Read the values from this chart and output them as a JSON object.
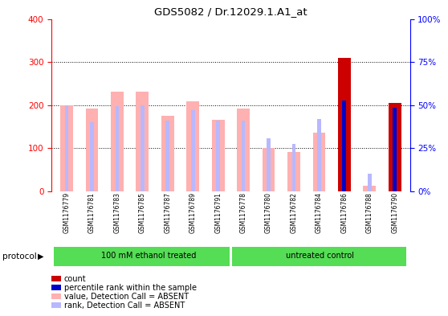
{
  "title": "GDS5082 / Dr.12029.1.A1_at",
  "samples": [
    "GSM1176779",
    "GSM1176781",
    "GSM1176783",
    "GSM1176785",
    "GSM1176787",
    "GSM1176789",
    "GSM1176791",
    "GSM1176778",
    "GSM1176780",
    "GSM1176782",
    "GSM1176784",
    "GSM1176786",
    "GSM1176788",
    "GSM1176790"
  ],
  "value_absent": [
    200,
    192,
    232,
    232,
    175,
    208,
    165,
    192,
    100,
    92,
    135,
    0,
    12,
    0
  ],
  "rank_absent_pct": [
    50,
    40,
    49.5,
    50,
    40.8,
    47,
    40.8,
    40.8,
    30.5,
    27.5,
    42,
    0,
    10,
    0
  ],
  "count": [
    0,
    0,
    0,
    0,
    0,
    0,
    0,
    0,
    0,
    0,
    0,
    310,
    0,
    205
  ],
  "percentile_pct": [
    0,
    0,
    0,
    0,
    0,
    0,
    0,
    0,
    0,
    0,
    0,
    52.5,
    0,
    48.3
  ],
  "group1_label": "100 mM ethanol treated",
  "group2_label": "untreated control",
  "group1_count": 7,
  "group2_count": 7,
  "ylim_left": [
    0,
    400
  ],
  "ylim_right": [
    0,
    100
  ],
  "yticks_left": [
    0,
    100,
    200,
    300,
    400
  ],
  "yticklabels_left": [
    "0",
    "100",
    "200",
    "300",
    "400"
  ],
  "yticks_right_pct": [
    0,
    25,
    50,
    75,
    100
  ],
  "yticklabels_right": [
    "0%",
    "25%",
    "50%",
    "75%",
    "100%"
  ],
  "color_value_absent": "#ffb0b0",
  "color_rank_absent": "#b8b8ff",
  "color_count": "#cc0000",
  "color_percentile": "#0000cc",
  "color_group": "#55dd55",
  "bar_width": 0.5,
  "rank_bar_width": 0.15,
  "protocol_label": "protocol",
  "grid_lines": [
    100,
    200,
    300
  ]
}
